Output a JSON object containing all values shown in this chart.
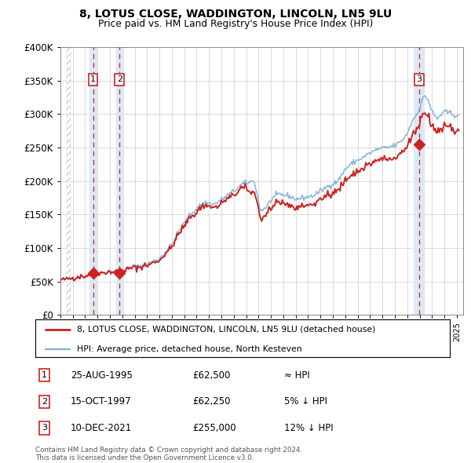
{
  "title": "8, LOTUS CLOSE, WADDINGTON, LINCOLN, LN5 9LU",
  "subtitle": "Price paid vs. HM Land Registry's House Price Index (HPI)",
  "purchases": [
    {
      "label": "1",
      "date_decimal": 1995.644,
      "price": 62500
    },
    {
      "label": "2",
      "date_decimal": 1997.789,
      "price": 62250
    },
    {
      "label": "3",
      "date_decimal": 2021.944,
      "price": 255000
    }
  ],
  "legend_line1": "8, LOTUS CLOSE, WADDINGTON, LINCOLN, LN5 9LU (detached house)",
  "legend_line2": "HPI: Average price, detached house, North Kesteven",
  "table": [
    {
      "num": "1",
      "date": "25-AUG-1995",
      "price": "£62,500",
      "rel": "≈ HPI"
    },
    {
      "num": "2",
      "date": "15-OCT-1997",
      "price": "£62,250",
      "rel": "5% ↓ HPI"
    },
    {
      "num": "3",
      "date": "10-DEC-2021",
      "price": "£255,000",
      "rel": "12% ↓ HPI"
    }
  ],
  "footnote1": "Contains HM Land Registry data © Crown copyright and database right 2024.",
  "footnote2": "This data is licensed under the Open Government Licence v3.0.",
  "xmin": 1993.5,
  "xmax": 2025.5,
  "ymin": 0,
  "ymax": 400000,
  "yticks": [
    0,
    50000,
    100000,
    150000,
    200000,
    250000,
    300000,
    350000,
    400000
  ],
  "hpi_color": "#7aacda",
  "price_color": "#cc2222",
  "highlight_color": "#dce8f5",
  "dashed_line_color": "#cc2222",
  "label_box_color": "#cc2222",
  "grid_color": "#cccccc",
  "hatch_color": "#ccccdd"
}
